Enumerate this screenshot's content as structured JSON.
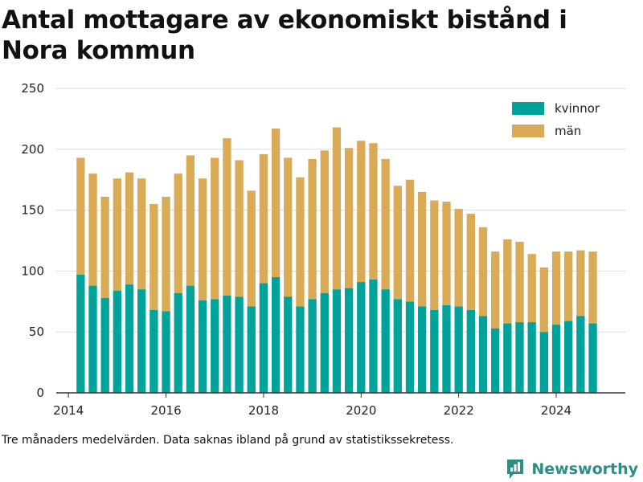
{
  "chart_data": {
    "type": "bar",
    "stacked": true,
    "title": "Antal mottagare av ekonomiskt bistånd i Nora kommun",
    "xlabel": "",
    "ylabel": "",
    "ylim": [
      0,
      250
    ],
    "yticks": [
      0,
      50,
      100,
      150,
      200,
      250
    ],
    "xticks": [
      "2014",
      "2016",
      "2018",
      "2020",
      "2022",
      "2024"
    ],
    "xlim": [
      "2013-10",
      "2025-06"
    ],
    "grid": true,
    "legend_position": "top-right",
    "x": [
      "2014-04",
      "2014-07",
      "2014-10",
      "2015-01",
      "2015-04",
      "2015-07",
      "2015-10",
      "2016-01",
      "2016-04",
      "2016-07",
      "2016-10",
      "2017-01",
      "2017-04",
      "2017-07",
      "2017-10",
      "2018-01",
      "2018-04",
      "2018-07",
      "2018-10",
      "2019-01",
      "2019-04",
      "2019-07",
      "2019-10",
      "2020-01",
      "2020-04",
      "2020-07",
      "2020-10",
      "2021-01",
      "2021-04",
      "2021-07",
      "2021-10",
      "2022-01",
      "2022-04",
      "2022-07",
      "2022-10",
      "2023-01",
      "2023-04",
      "2023-07",
      "2023-10",
      "2024-01",
      "2024-04",
      "2024-07",
      "2024-10"
    ],
    "series": [
      {
        "name": "kvinnor",
        "color": "#00a39a",
        "values": [
          97,
          88,
          78,
          84,
          89,
          85,
          68,
          67,
          82,
          88,
          76,
          77,
          80,
          79,
          71,
          90,
          95,
          79,
          71,
          77,
          82,
          85,
          86,
          91,
          93,
          85,
          77,
          75,
          71,
          68,
          72,
          71,
          68,
          63,
          53,
          57,
          58,
          58,
          50,
          56,
          59,
          63,
          57
        ]
      },
      {
        "name": "män",
        "color": "#d9ab57",
        "values": [
          96,
          92,
          83,
          92,
          92,
          91,
          87,
          94,
          98,
          107,
          100,
          116,
          129,
          112,
          95,
          106,
          122,
          114,
          106,
          115,
          117,
          133,
          115,
          116,
          112,
          107,
          93,
          100,
          94,
          90,
          85,
          80,
          79,
          73,
          63,
          69,
          66,
          56,
          53,
          60,
          57,
          54,
          59
        ]
      }
    ]
  },
  "footer": {
    "note": "Tre månaders medelvärden. Data saknas ibland på grund av statistikssekretess.",
    "brand": "Newsworthy"
  }
}
